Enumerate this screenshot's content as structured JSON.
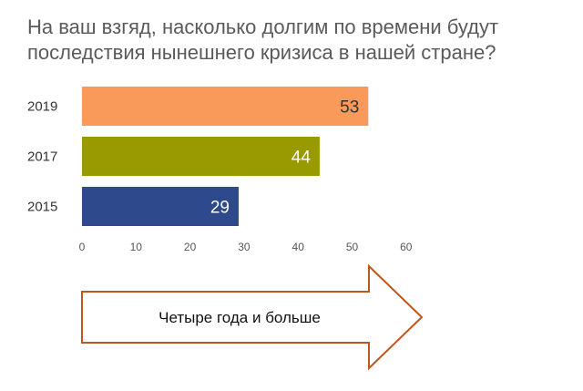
{
  "title_lines": [
    "На ваш взгяд, насколько долгим по времени будут",
    "последствия нынешнего кризиса в нашей стране?"
  ],
  "chart_data": {
    "type": "bar",
    "orientation": "horizontal",
    "categories": [
      "2019",
      "2017",
      "2015"
    ],
    "values": [
      53,
      44,
      29
    ],
    "bar_colors": [
      "#fa9a5a",
      "#999900",
      "#2e4a8c"
    ],
    "value_label_colors": [
      "#333333",
      "#ffffff",
      "#ffffff"
    ],
    "xlim": [
      0,
      60
    ],
    "xticks": [
      0,
      10,
      20,
      30,
      40,
      50,
      60
    ],
    "grid": false
  },
  "arrow": {
    "label": "Четыре года и больше",
    "outline_color": "#c0561b"
  }
}
